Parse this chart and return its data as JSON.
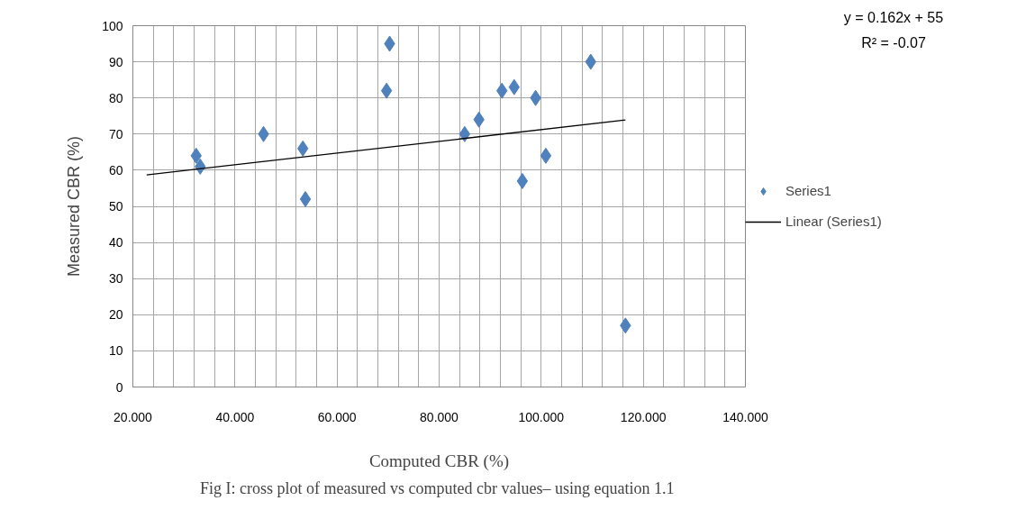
{
  "chart_data": {
    "type": "scatter",
    "xlabel": "Computed CBR (%)",
    "ylabel": "Measured CBR (%)",
    "xlim": [
      20,
      140
    ],
    "ylim": [
      0,
      100
    ],
    "xticks": [
      {
        "value": 20,
        "label": "20.000"
      },
      {
        "value": 24,
        "label": null
      },
      {
        "value": 28,
        "label": null
      },
      {
        "value": 32,
        "label": null
      },
      {
        "value": 36,
        "label": null
      },
      {
        "value": 40,
        "label": "40.000"
      },
      {
        "value": 44,
        "label": null
      },
      {
        "value": 48,
        "label": null
      },
      {
        "value": 52,
        "label": null
      },
      {
        "value": 56,
        "label": null
      },
      {
        "value": 60,
        "label": "60.000"
      },
      {
        "value": 64,
        "label": null
      },
      {
        "value": 68,
        "label": null
      },
      {
        "value": 72,
        "label": null
      },
      {
        "value": 76,
        "label": null
      },
      {
        "value": 80,
        "label": "80.000"
      },
      {
        "value": 84,
        "label": null
      },
      {
        "value": 88,
        "label": null
      },
      {
        "value": 92,
        "label": null
      },
      {
        "value": 96,
        "label": null
      },
      {
        "value": 100,
        "label": "100.000"
      },
      {
        "value": 104,
        "label": null
      },
      {
        "value": 108,
        "label": null
      },
      {
        "value": 112,
        "label": null
      },
      {
        "value": 116,
        "label": null
      },
      {
        "value": 120,
        "label": "120.000"
      },
      {
        "value": 124,
        "label": null
      },
      {
        "value": 128,
        "label": null
      },
      {
        "value": 132,
        "label": null
      },
      {
        "value": 136,
        "label": null
      },
      {
        "value": 140,
        "label": "140.000"
      }
    ],
    "yticks": [
      0,
      10,
      20,
      30,
      40,
      50,
      60,
      70,
      80,
      90,
      100
    ],
    "grid": true,
    "legend": "right",
    "series": [
      {
        "name": "Series1",
        "marker": "diamond",
        "color": "#4f81bd",
        "x": [
          32.4,
          33.2,
          45.6,
          53.3,
          53.8,
          69.7,
          70.3,
          85.0,
          87.8,
          92.3,
          94.7,
          98.9,
          96.3,
          100.9,
          109.7,
          116.5
        ],
        "values": [
          64,
          61,
          70,
          66,
          52,
          82,
          95,
          70,
          74,
          82,
          83,
          80,
          57,
          64,
          90,
          17
        ]
      },
      {
        "name": "Linear (Series1)",
        "type": "line",
        "marker": "none",
        "line_style": "solid",
        "color": "#000000",
        "x": [
          22.7,
          116.5
        ],
        "values": [
          58.7,
          73.9
        ]
      }
    ],
    "annotations": [
      "y = 0.162x  + 55",
      "R² = -0.07",
      "Fig I: cross plot of measured vs  computed cbr values– using equation 1.1"
    ]
  }
}
